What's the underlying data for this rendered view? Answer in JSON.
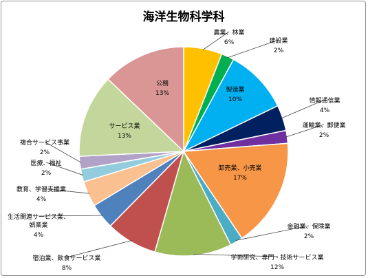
{
  "chart_data": {
    "type": "pie",
    "title": "海洋生物科学科",
    "unit": "%",
    "slices": [
      {
        "name": "農業、林業",
        "value": 6,
        "label": "6%",
        "color": "#ffc000"
      },
      {
        "name": "建設業",
        "value": 2,
        "label": "2%",
        "color": "#00b050"
      },
      {
        "name": "製造業",
        "value": 10,
        "label": "10%",
        "color": "#00b0f0"
      },
      {
        "name": "情報通信業",
        "value": 4,
        "label": "4%",
        "color": "#002060"
      },
      {
        "name": "運輸業、郵便業",
        "value": 2,
        "label": "2%",
        "color": "#7030a0"
      },
      {
        "name": "卸売業、小売業",
        "value": 17,
        "label": "17%",
        "color": "#f79646"
      },
      {
        "name": "金融業、保険業",
        "value": 2,
        "label": "2%",
        "color": "#4bacc6"
      },
      {
        "name": "学術研究、専門・技術サービス業",
        "value": 12,
        "label": "12%",
        "color": "#9bbb59"
      },
      {
        "name": "宿泊業、飲食サービス業",
        "value": 8,
        "label": "8%",
        "color": "#c0504d"
      },
      {
        "name": "生活関連サービス業、娯楽業",
        "value": 4,
        "label": "4%",
        "color": "#4f81bd"
      },
      {
        "name": "教育、学習支援業",
        "value": 4,
        "label": "4%",
        "color": "#fac090"
      },
      {
        "name": "医療、福祉",
        "value": 2,
        "label": "2%",
        "color": "#93cddd"
      },
      {
        "name": "複合サービス事業",
        "value": 2,
        "label": "2%",
        "color": "#b3a2c7"
      },
      {
        "name": "サービス業",
        "value": 13,
        "label": "13%",
        "color": "#c3d69b"
      },
      {
        "name": "公務",
        "value": 13,
        "label": "13%",
        "color": "#d99694"
      }
    ]
  }
}
